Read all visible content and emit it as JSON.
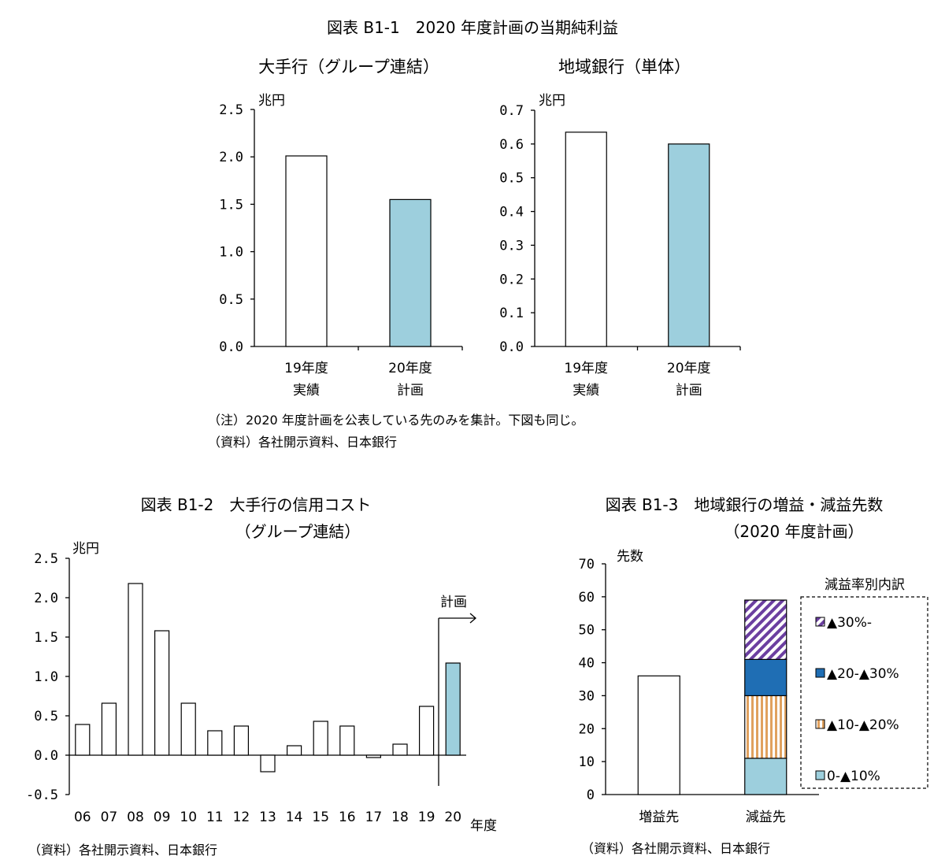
{
  "fig1": {
    "title": "図表 B1-1　2020 年度計画の当期純利益",
    "note": "（注）2020 年度計画を公表している先のみを集計。下図も同じ。",
    "source": "（資料）各社開示資料、日本銀行"
  },
  "fig2": {
    "title_line1": "図表 B1-2　大手行の信用コスト",
    "title_line2": "（グループ連結）",
    "plan_label": "計画",
    "source": "（資料）各社開示資料、日本銀行"
  },
  "fig3": {
    "title_line1": "図表 B1-3　地域銀行の増益・減益先数",
    "title_line2": "（2020 年度計画）",
    "legend_title": "減益率別内訳",
    "source": "（資料）各社開示資料、日本銀行"
  },
  "colors": {
    "plan_blue": "#9dcfdd",
    "dark_blue": "#1f6eb4",
    "purple_stripe": "#6b3fa0",
    "orange_stripe": "#e0a15e"
  },
  "chart_data": [
    {
      "type": "bar",
      "title": "大手行（グループ連結）",
      "ylabel": "兆円",
      "ylim": [
        0,
        2.5
      ],
      "yticks": [
        "0.0",
        "0.5",
        "1.0",
        "1.5",
        "2.0",
        "2.5"
      ],
      "categories": [
        [
          "19年度",
          "実績"
        ],
        [
          "20年度",
          "計画"
        ]
      ],
      "values": [
        2.01,
        1.55
      ],
      "grid": false
    },
    {
      "type": "bar",
      "title": "地域銀行（単体）",
      "ylabel": "兆円",
      "ylim": [
        0,
        0.7
      ],
      "yticks": [
        "0.0",
        "0.1",
        "0.2",
        "0.3",
        "0.4",
        "0.5",
        "0.6",
        "0.7"
      ],
      "categories": [
        [
          "19年度",
          "実績"
        ],
        [
          "20年度",
          "計画"
        ]
      ],
      "values": [
        0.635,
        0.6
      ],
      "grid": false
    },
    {
      "type": "bar",
      "ylabel": "兆円",
      "xlabel": "年度",
      "ylim": [
        -0.5,
        2.5
      ],
      "yticks": [
        "-0.5",
        "0.0",
        "0.5",
        "1.0",
        "1.5",
        "2.0",
        "2.5"
      ],
      "categories": [
        "06",
        "07",
        "08",
        "09",
        "10",
        "11",
        "12",
        "13",
        "14",
        "15",
        "16",
        "17",
        "18",
        "19",
        "20"
      ],
      "values": [
        0.39,
        0.66,
        2.18,
        1.58,
        0.66,
        0.31,
        0.37,
        -0.21,
        0.12,
        0.43,
        0.37,
        -0.03,
        0.14,
        0.62,
        1.17
      ],
      "grid": false
    },
    {
      "type": "bar",
      "stacked": true,
      "ylabel": "先数",
      "ylim": [
        0,
        70
      ],
      "yticks": [
        "0",
        "10",
        "20",
        "30",
        "40",
        "50",
        "60",
        "70"
      ],
      "categories": [
        "増益先",
        "減益先"
      ],
      "series": [
        {
          "name": "0-▲10%",
          "values": [
            null,
            11
          ]
        },
        {
          "name": "▲10-▲20%",
          "values": [
            null,
            19
          ]
        },
        {
          "name": "▲20-▲30%",
          "values": [
            null,
            11
          ]
        },
        {
          "name": "▲30%-",
          "values": [
            null,
            18
          ]
        }
      ],
      "total_increase": 36,
      "legend_title": "減益率別内訳",
      "legend_position": "right",
      "grid": false
    }
  ]
}
